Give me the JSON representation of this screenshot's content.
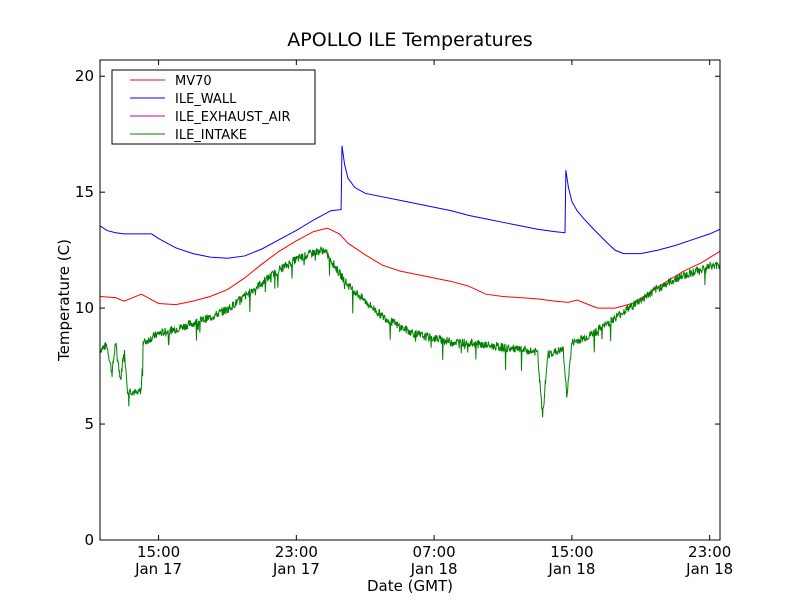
{
  "chart_data": {
    "type": "line",
    "title": "APOLLO ILE Temperatures",
    "xlabel": "Date (GMT)",
    "ylabel": "Temperature (C)",
    "x_unit": "hours",
    "xlim": [
      11.6,
      47.6
    ],
    "ylim": [
      0,
      20.7
    ],
    "x_ticks": [
      {
        "x": 15,
        "line1": "15:00",
        "line2": "Jan 17"
      },
      {
        "x": 23,
        "line1": "23:00",
        "line2": "Jan 17"
      },
      {
        "x": 31,
        "line1": "07:00",
        "line2": "Jan 18"
      },
      {
        "x": 39,
        "line1": "15:00",
        "line2": "Jan 18"
      },
      {
        "x": 47,
        "line1": "23:00",
        "line2": "Jan 18"
      }
    ],
    "y_ticks": [
      0,
      5,
      10,
      15,
      20
    ],
    "grid": false,
    "legend": {
      "placement": "top-left"
    },
    "series": [
      {
        "name": "MV70",
        "color": "#ff0000",
        "points": [
          [
            11.6,
            10.5
          ],
          [
            12.5,
            10.45
          ],
          [
            13.0,
            10.3
          ],
          [
            13.5,
            10.45
          ],
          [
            14.0,
            10.6
          ],
          [
            14.5,
            10.4
          ],
          [
            15.0,
            10.2
          ],
          [
            16.0,
            10.15
          ],
          [
            17.0,
            10.3
          ],
          [
            18.0,
            10.5
          ],
          [
            19.0,
            10.8
          ],
          [
            20.0,
            11.3
          ],
          [
            21.0,
            11.9
          ],
          [
            22.0,
            12.45
          ],
          [
            23.0,
            12.9
          ],
          [
            24.0,
            13.3
          ],
          [
            24.8,
            13.45
          ],
          [
            25.5,
            13.2
          ],
          [
            26.0,
            12.8
          ],
          [
            27.0,
            12.3
          ],
          [
            28.0,
            11.85
          ],
          [
            29.0,
            11.6
          ],
          [
            30.0,
            11.45
          ],
          [
            31.0,
            11.3
          ],
          [
            32.0,
            11.15
          ],
          [
            33.0,
            10.95
          ],
          [
            34.0,
            10.6
          ],
          [
            35.0,
            10.5
          ],
          [
            36.0,
            10.45
          ],
          [
            37.0,
            10.4
          ],
          [
            38.0,
            10.3
          ],
          [
            38.8,
            10.25
          ],
          [
            39.3,
            10.35
          ],
          [
            39.8,
            10.2
          ],
          [
            40.5,
            10.0
          ],
          [
            41.5,
            10.0
          ],
          [
            42.5,
            10.2
          ],
          [
            43.5,
            10.65
          ],
          [
            44.5,
            11.15
          ],
          [
            45.5,
            11.6
          ],
          [
            46.5,
            11.95
          ],
          [
            47.6,
            12.45
          ]
        ]
      },
      {
        "name": "ILE_WALL",
        "color": "#0000ff",
        "points": [
          [
            11.6,
            13.55
          ],
          [
            12.0,
            13.35
          ],
          [
            12.5,
            13.25
          ],
          [
            13.0,
            13.2
          ],
          [
            14.0,
            13.2
          ],
          [
            14.6,
            13.2
          ],
          [
            15.0,
            13.0
          ],
          [
            16.0,
            12.6
          ],
          [
            17.0,
            12.35
          ],
          [
            18.0,
            12.2
          ],
          [
            19.0,
            12.15
          ],
          [
            20.0,
            12.25
          ],
          [
            21.0,
            12.55
          ],
          [
            22.0,
            12.95
          ],
          [
            23.0,
            13.35
          ],
          [
            24.0,
            13.8
          ],
          [
            25.0,
            14.2
          ],
          [
            25.6,
            14.25
          ],
          [
            25.65,
            17.0
          ],
          [
            25.8,
            16.2
          ],
          [
            26.0,
            15.6
          ],
          [
            26.4,
            15.2
          ],
          [
            27.0,
            14.95
          ],
          [
            28.0,
            14.8
          ],
          [
            29.0,
            14.65
          ],
          [
            30.0,
            14.5
          ],
          [
            31.0,
            14.35
          ],
          [
            32.0,
            14.2
          ],
          [
            33.0,
            14.0
          ],
          [
            34.0,
            13.85
          ],
          [
            35.0,
            13.7
          ],
          [
            36.0,
            13.55
          ],
          [
            37.0,
            13.4
          ],
          [
            38.0,
            13.3
          ],
          [
            38.6,
            13.25
          ],
          [
            38.65,
            15.95
          ],
          [
            38.8,
            15.2
          ],
          [
            39.0,
            14.6
          ],
          [
            39.3,
            14.2
          ],
          [
            39.7,
            13.85
          ],
          [
            40.2,
            13.45
          ],
          [
            41.0,
            12.85
          ],
          [
            41.5,
            12.5
          ],
          [
            42.0,
            12.35
          ],
          [
            43.0,
            12.35
          ],
          [
            44.0,
            12.5
          ],
          [
            45.0,
            12.7
          ],
          [
            46.0,
            12.95
          ],
          [
            47.0,
            13.2
          ],
          [
            47.6,
            13.4
          ]
        ]
      },
      {
        "name": "ILE_EXHAUST_AIR",
        "color": "#bf00bf",
        "points": []
      },
      {
        "name": "ILE_INTAKE",
        "color": "#008000",
        "noise": 0.18,
        "points": [
          [
            11.6,
            8.2
          ],
          [
            12.0,
            8.4
          ],
          [
            12.3,
            7.2
          ],
          [
            12.5,
            8.5
          ],
          [
            12.8,
            6.9
          ],
          [
            13.0,
            8.3
          ],
          [
            13.2,
            6.5
          ],
          [
            13.5,
            6.4
          ],
          [
            13.8,
            6.3
          ],
          [
            14.0,
            6.5
          ],
          [
            14.1,
            8.5
          ],
          [
            15.0,
            8.9
          ],
          [
            16.0,
            9.1
          ],
          [
            17.0,
            9.35
          ],
          [
            18.0,
            9.6
          ],
          [
            19.0,
            9.95
          ],
          [
            20.0,
            10.5
          ],
          [
            21.0,
            11.1
          ],
          [
            22.0,
            11.65
          ],
          [
            23.0,
            12.1
          ],
          [
            24.0,
            12.4
          ],
          [
            24.6,
            12.5
          ],
          [
            25.0,
            12.1
          ],
          [
            25.5,
            11.5
          ],
          [
            26.0,
            11.0
          ],
          [
            27.0,
            10.3
          ],
          [
            28.0,
            9.65
          ],
          [
            29.0,
            9.2
          ],
          [
            30.0,
            8.85
          ],
          [
            31.0,
            8.7
          ],
          [
            32.0,
            8.55
          ],
          [
            33.0,
            8.5
          ],
          [
            34.0,
            8.4
          ],
          [
            35.0,
            8.3
          ],
          [
            36.0,
            8.2
          ],
          [
            37.0,
            8.1
          ],
          [
            37.3,
            5.3
          ],
          [
            37.6,
            8.0
          ],
          [
            38.0,
            8.1
          ],
          [
            38.5,
            8.2
          ],
          [
            38.7,
            6.2
          ],
          [
            39.0,
            8.5
          ],
          [
            40.0,
            8.8
          ],
          [
            41.0,
            9.3
          ],
          [
            42.0,
            9.85
          ],
          [
            43.0,
            10.35
          ],
          [
            44.0,
            10.85
          ],
          [
            45.0,
            11.25
          ],
          [
            46.0,
            11.55
          ],
          [
            47.0,
            11.8
          ],
          [
            47.6,
            11.85
          ]
        ]
      }
    ]
  }
}
